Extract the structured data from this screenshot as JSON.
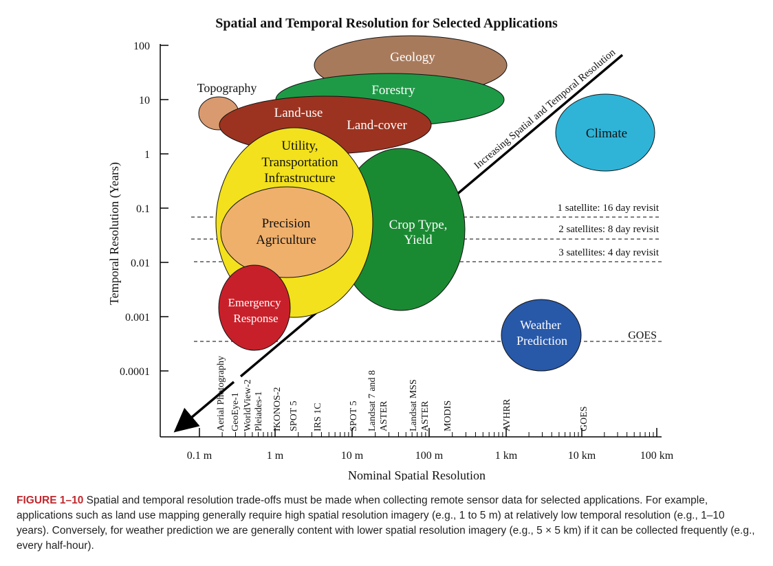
{
  "title": "Spatial and Temporal Resolution for Selected Applications",
  "y_axis_label": "Temporal Resolution (Years)",
  "x_axis_label": "Nominal Spatial Resolution",
  "y_ticks": [
    "100",
    "10",
    "1",
    "0.1",
    "0.01",
    "0.001",
    "0.0001"
  ],
  "x_ticks": [
    "0.1 m",
    "1 m",
    "10 m",
    "100 m",
    "1 km",
    "10 km",
    "100 km"
  ],
  "diagonal_label": "Increasing Spatial and Temporal Resolution",
  "applications": {
    "geology": "Geology",
    "forestry": "Forestry",
    "topography": "Topography",
    "landuse": "Land-use",
    "landcover": "Land-cover",
    "climate": "Climate",
    "utility": [
      "Utility,",
      "Transportation",
      "Infrastructure"
    ],
    "precision": [
      "Precision",
      "Agriculture"
    ],
    "croptype": [
      "Crop Type,",
      "Yield"
    ],
    "emergency": [
      "Emergency",
      "Response"
    ],
    "weather": [
      "Weather",
      "Prediction"
    ]
  },
  "revisit_lines": [
    "1 satellite:  16 day revisit",
    "2 satellites:  8 day revisit",
    "3 satellites:  4 day revisit",
    "GOES"
  ],
  "sensors": [
    "Aerial Photography",
    "GeoEye-1",
    "WorldView-2",
    "Pleiades-1",
    "IKONOS-2",
    "SPOT 5",
    "IRS 1C",
    "SPOT 5",
    "Landsat 7 and 8",
    "ASTER",
    "Landsat MSS",
    "ASTER",
    "MODIS",
    "AVHRR",
    "GOES"
  ],
  "colors": {
    "geology": "#a87a5c",
    "forestry": "#1e9a46",
    "topography": "#d99a70",
    "landuse": "#9c3320",
    "climate": "#2fb4d8",
    "utility": "#f2e11c",
    "precision": "#efb06c",
    "croptype": "#1a8a32",
    "emergency": "#c8202a",
    "weather": "#2858a8",
    "caption_label": "#c0282d"
  },
  "caption": {
    "label": "FIGURE 1–10",
    "text": "Spatial and temporal resolution trade-offs must be made when collecting remote sensor data for selected applications. For example, applications such as land use mapping generally require high spatial resolution imagery (e.g., 1 to 5 m) at relatively low temporal resolution (e.g., 1–10 years). Conversely, for weather prediction we are generally content with lower spatial resolution imagery (e.g., 5 × 5 km) if it can be collected frequently (e.g., every half-hour)."
  }
}
